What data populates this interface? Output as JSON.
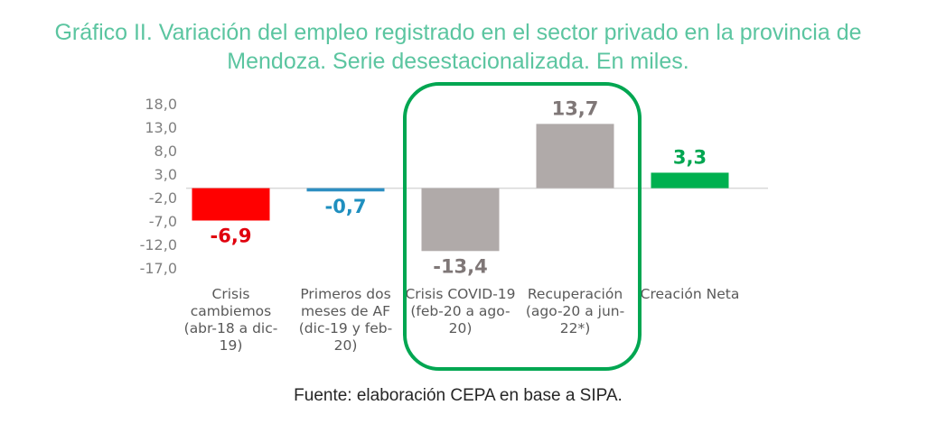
{
  "chart_data": {
    "type": "bar",
    "title": "Gráfico II. Variación del empleo registrado en el sector privado en la provincia de Mendoza. Serie desestacionalizada. En miles.",
    "title_lines": [
      "Gráfico II. Variación del empleo registrado en el sector privado en la provincia de",
      "Mendoza. Serie desestacionalizada. En miles."
    ],
    "categories": [
      [
        "Crisis",
        "cambiemos",
        "(abr-18 a dic-",
        "19)"
      ],
      [
        "Primeros dos",
        "meses de AF",
        "(dic-19 y feb-",
        "20)"
      ],
      [
        "Crisis COVID-19",
        "(feb-20 a ago-",
        "20)"
      ],
      [
        "Recuperación",
        "(ago-20 a jun-",
        "22*)"
      ],
      [
        "Creación Neta"
      ]
    ],
    "values": [
      -6.9,
      -0.7,
      -13.4,
      13.7,
      3.3
    ],
    "value_labels": [
      "-6,9",
      "-0,7",
      "-13,4",
      "13,7",
      "3,3"
    ],
    "bar_colors": [
      "#ff0000",
      "#2e8fc2",
      "#b0aaa9",
      "#b0aaa9",
      "#00b050"
    ],
    "label_colors": [
      "#e0000d",
      "#1f8fbf",
      "#7f7777",
      "#7f7777",
      "#00a651"
    ],
    "yticks": [
      18,
      13,
      8,
      3,
      -2,
      -7,
      -12,
      -17
    ],
    "ytick_labels": [
      "18,0",
      "13,0",
      "8,0",
      "3,0",
      "-2,0",
      "-7,0",
      "-12,0",
      "-17,0"
    ],
    "ylim": [
      -17,
      18
    ],
    "xlabel": "",
    "ylabel": "",
    "grid": false,
    "highlight": {
      "categories": [
        2,
        3
      ],
      "color": "#00a651"
    },
    "source": "Fuente: elaboración CEPA en base a SIPA."
  }
}
